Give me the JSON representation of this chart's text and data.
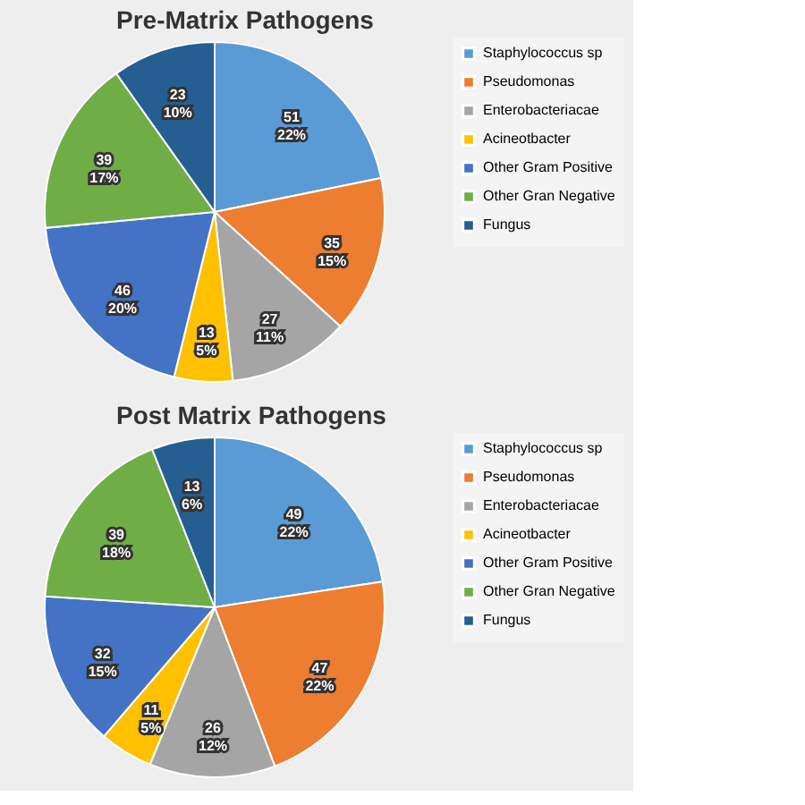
{
  "chart_data": [
    {
      "type": "pie",
      "title": "Pre-Matrix Pathogens",
      "categories": [
        "Staphylococcus sp",
        "Pseudomonas",
        "Enterobacteriacae",
        "Acineotbacter",
        "Other Gram Positive",
        "Other Gran Negative",
        "Fungus"
      ],
      "values": [
        51,
        35,
        27,
        13,
        46,
        39,
        23
      ],
      "value_labels": [
        "51\n22%",
        "35\n15%",
        "27\n11%",
        "13\n5%",
        "46\n20%",
        "39\n17%",
        "23\n10%"
      ],
      "colors": [
        "#5b9bd5",
        "#ed7d31",
        "#a5a5a5",
        "#ffc000",
        "#4472c4",
        "#70ad47",
        "#255e91"
      ],
      "legend": "right"
    },
    {
      "type": "pie",
      "title": "Post Matrix Pathogens",
      "categories": [
        "Staphylococcus sp",
        "Pseudomonas",
        "Enterobacteriacae",
        "Acineotbacter",
        "Other Gram Positive",
        "Other Gran Negative",
        "Fungus"
      ],
      "values": [
        49,
        47,
        26,
        11,
        32,
        39,
        13
      ],
      "value_labels": [
        "49\n22%",
        "47\n22%",
        "26\n12%",
        "11\n5%",
        "32\n15%",
        "39\n18%",
        "13\n6%"
      ],
      "colors": [
        "#5b9bd5",
        "#ed7d31",
        "#a5a5a5",
        "#ffc000",
        "#4472c4",
        "#70ad47",
        "#255e91"
      ],
      "legend": "right"
    }
  ]
}
